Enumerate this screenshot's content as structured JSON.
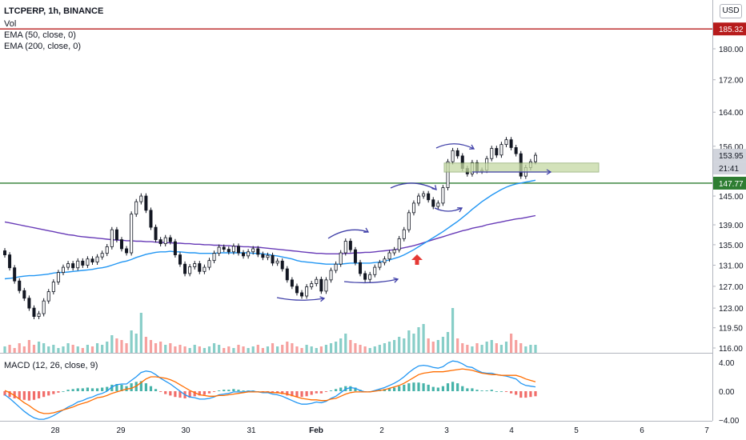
{
  "header": {
    "symbol_line": "LTCPERP, 1h, BINANCE",
    "vol_label": "Vol",
    "ema50_label": "EMA (50, close, 0)",
    "ema200_label": "EMA (200, close, 0)",
    "currency": "USD",
    "macd_label": "MACD (12, 26, close, 9)"
  },
  "colors": {
    "up": "#26a69a",
    "down": "#ef5350",
    "candle": "#131722",
    "ema50": "#2196f3",
    "ema200": "#673ab7",
    "red_line": "#b71c1c",
    "green_line": "#2e7d32",
    "zone_fill": "#c5d9a3",
    "annotation": "#3f3fa8",
    "arrow": "#e53935"
  },
  "chart_data": {
    "type": "candlestick",
    "price_axis": {
      "ticks": [
        "180.00",
        "172.00",
        "164.00",
        "156.00",
        "145.00",
        "139.00",
        "135.00",
        "131.00",
        "127.00",
        "123.00",
        "119.50",
        "116.00"
      ],
      "scale": "log"
    },
    "price_labels": {
      "red_level": "185.32",
      "last_price": "153.95",
      "countdown": "21:41",
      "green_level": "147.77"
    },
    "x_ticks": [
      "28",
      "29",
      "30",
      "31",
      "Feb",
      "2",
      "3",
      "4",
      "5",
      "6",
      "7"
    ],
    "macd_axis": {
      "ticks": [
        "4.00",
        "0.00",
        "−4.00"
      ]
    },
    "close": [
      133.0,
      130.5,
      128.0,
      126.2,
      124.8,
      123.0,
      121.5,
      122.0,
      124.3,
      126.0,
      127.8,
      129.6,
      130.6,
      131.3,
      130.5,
      131.8,
      131.0,
      132.2,
      131.6,
      132.6,
      133.3,
      134.6,
      138.0,
      136.0,
      134.2,
      133.4,
      141.2,
      143.8,
      145.0,
      142.0,
      138.5,
      136.0,
      135.2,
      136.4,
      135.6,
      133.0,
      131.2,
      129.4,
      130.7,
      131.3,
      129.8,
      130.6,
      131.9,
      133.3,
      134.5,
      134.1,
      133.6,
      134.7,
      133.4,
      132.8,
      133.6,
      134.2,
      133.1,
      132.5,
      132.9,
      131.4,
      131.8,
      130.3,
      128.2,
      127.0,
      125.8,
      125.2,
      126.9,
      127.5,
      128.3,
      126.1,
      128.2,
      130.0,
      131.2,
      133.4,
      135.7,
      134.0,
      131.5,
      129.4,
      128.3,
      129.2,
      130.6,
      131.5,
      132.2,
      133.4,
      134.0,
      136.2,
      138.0,
      141.5,
      143.5,
      145.0,
      145.5,
      144.2,
      142.8,
      143.5,
      146.8,
      152.5,
      155.0,
      153.8,
      151.0,
      149.8,
      152.3,
      150.4,
      150.6,
      153.2,
      155.5,
      154.0,
      156.4,
      157.5,
      155.7,
      154.3,
      149.3,
      151.2,
      152.5,
      153.95
    ],
    "volume": [
      4,
      5,
      3,
      6,
      4,
      8,
      5,
      7,
      6,
      4,
      5,
      3,
      4,
      6,
      5,
      4,
      3,
      5,
      4,
      6,
      5,
      7,
      11,
      9,
      8,
      6,
      14,
      12,
      25,
      10,
      8,
      6,
      7,
      5,
      6,
      4,
      5,
      4,
      3,
      5,
      4,
      3,
      4,
      6,
      5,
      3,
      4,
      3,
      5,
      4,
      3,
      4,
      5,
      3,
      4,
      6,
      4,
      5,
      7,
      6,
      4,
      3,
      5,
      4,
      3,
      4,
      5,
      6,
      7,
      9,
      12,
      8,
      6,
      5,
      4,
      3,
      4,
      5,
      6,
      7,
      8,
      10,
      9,
      14,
      12,
      16,
      18,
      9,
      7,
      8,
      10,
      13,
      28,
      9,
      6,
      5,
      4,
      6,
      5,
      7,
      8,
      6,
      5,
      7,
      12,
      8,
      6,
      4,
      5,
      5
    ],
    "ema50": [
      128.4,
      128.5,
      128.6,
      128.8,
      128.9,
      129.0,
      129.0,
      129.1,
      129.2,
      129.3,
      129.5,
      129.6,
      129.6,
      129.7,
      129.8,
      129.9,
      130.0,
      130.1,
      130.2,
      130.4,
      130.5,
      130.7,
      131.0,
      131.3,
      131.6,
      131.8,
      132.1,
      132.5,
      132.8,
      133.1,
      133.3,
      133.5,
      133.6,
      133.6,
      133.7,
      133.6,
      133.6,
      133.5,
      133.4,
      133.4,
      133.3,
      133.3,
      133.3,
      133.3,
      133.4,
      133.4,
      133.4,
      133.4,
      133.4,
      133.4,
      133.4,
      133.3,
      133.3,
      133.2,
      133.1,
      132.9,
      132.8,
      132.6,
      132.4,
      132.2,
      131.9,
      131.7,
      131.6,
      131.5,
      131.4,
      131.3,
      131.2,
      131.2,
      131.2,
      131.2,
      131.3,
      131.4,
      131.4,
      131.4,
      131.4,
      131.4,
      131.5,
      131.6,
      131.8,
      132.0,
      132.3,
      132.6,
      133.0,
      133.5,
      134.0,
      134.6,
      135.2,
      135.8,
      136.4,
      137.0,
      137.6,
      138.3,
      139.0,
      139.7,
      140.5,
      141.3,
      142.2,
      143.0,
      143.8,
      144.5,
      145.2,
      145.8,
      146.4,
      146.9,
      147.3,
      147.6,
      147.8,
      148.0,
      148.2,
      148.4
    ],
    "ema200": [
      139.6,
      139.4,
      139.2,
      139.0,
      138.8,
      138.6,
      138.4,
      138.2,
      138.0,
      137.8,
      137.6,
      137.4,
      137.2,
      137.0,
      136.9,
      136.7,
      136.6,
      136.5,
      136.4,
      136.3,
      136.2,
      136.1,
      136.0,
      135.9,
      135.9,
      135.8,
      135.8,
      135.7,
      135.7,
      135.6,
      135.6,
      135.5,
      135.5,
      135.4,
      135.4,
      135.3,
      135.3,
      135.2,
      135.2,
      135.1,
      135.1,
      135.0,
      135.0,
      134.9,
      134.9,
      134.8,
      134.8,
      134.7,
      134.7,
      134.6,
      134.6,
      134.5,
      134.5,
      134.4,
      134.3,
      134.2,
      134.1,
      134.0,
      133.9,
      133.8,
      133.7,
      133.6,
      133.5,
      133.4,
      133.3,
      133.3,
      133.2,
      133.2,
      133.2,
      133.2,
      133.3,
      133.3,
      133.4,
      133.4,
      133.5,
      133.5,
      133.6,
      133.7,
      133.8,
      133.9,
      134.0,
      134.2,
      134.4,
      134.6,
      134.8,
      135.1,
      135.4,
      135.7,
      136.0,
      136.3,
      136.6,
      136.9,
      137.2,
      137.5,
      137.8,
      138.0,
      138.3,
      138.5,
      138.7,
      139.0,
      139.2,
      139.4,
      139.6,
      139.8,
      140.0,
      140.2,
      140.3,
      140.5,
      140.7,
      140.9
    ],
    "macd_hist": [
      -0.6,
      -0.8,
      -1.0,
      -1.1,
      -1.2,
      -1.3,
      -1.2,
      -1.0,
      -0.8,
      -0.6,
      -0.4,
      -0.2,
      0.0,
      0.2,
      0.3,
      0.4,
      0.4,
      0.5,
      0.4,
      0.4,
      0.5,
      0.6,
      0.9,
      1.0,
      0.9,
      0.7,
      1.1,
      1.3,
      1.4,
      1.1,
      0.7,
      0.3,
      -0.1,
      -0.4,
      -0.6,
      -0.8,
      -0.9,
      -1.0,
      -0.9,
      -0.7,
      -0.6,
      -0.5,
      -0.3,
      -0.1,
      0.1,
      0.2,
      0.2,
      0.3,
      0.2,
      0.1,
      0.1,
      0.1,
      0.0,
      -0.1,
      -0.1,
      -0.2,
      -0.3,
      -0.4,
      -0.6,
      -0.7,
      -0.8,
      -0.8,
      -0.7,
      -0.5,
      -0.3,
      -0.3,
      -0.1,
      0.1,
      0.3,
      0.5,
      0.7,
      0.7,
      0.5,
      0.2,
      0.0,
      0.0,
      0.1,
      0.2,
      0.3,
      0.4,
      0.5,
      0.7,
      0.9,
      1.1,
      1.2,
      1.2,
      1.1,
      0.9,
      0.6,
      0.5,
      0.7,
      1.1,
      1.3,
      1.1,
      0.7,
      0.4,
      0.4,
      0.2,
      0.1,
      0.1,
      0.2,
      0.0,
      0.0,
      -0.1,
      -0.3,
      -0.5,
      -0.9,
      -0.9,
      -0.8,
      -0.7
    ],
    "macd_line": [
      -0.5,
      -1.0,
      -1.6,
      -2.2,
      -2.8,
      -3.3,
      -3.7,
      -3.9,
      -3.9,
      -3.7,
      -3.4,
      -3.0,
      -2.6,
      -2.2,
      -1.9,
      -1.5,
      -1.3,
      -1.0,
      -0.8,
      -0.5,
      -0.3,
      0.0,
      0.6,
      0.9,
      1.0,
      1.0,
      1.5,
      2.0,
      2.6,
      2.8,
      2.7,
      2.3,
      1.8,
      1.4,
      1.0,
      0.5,
      0.0,
      -0.5,
      -0.8,
      -0.9,
      -1.1,
      -1.1,
      -1.0,
      -0.8,
      -0.5,
      -0.4,
      -0.3,
      -0.1,
      -0.1,
      -0.1,
      0.0,
      0.0,
      -0.1,
      -0.2,
      -0.2,
      -0.4,
      -0.5,
      -0.7,
      -1.0,
      -1.3,
      -1.6,
      -1.8,
      -1.8,
      -1.7,
      -1.5,
      -1.6,
      -1.4,
      -1.0,
      -0.7,
      -0.2,
      0.3,
      0.5,
      0.4,
      0.1,
      -0.1,
      -0.1,
      0.1,
      0.3,
      0.5,
      0.8,
      1.1,
      1.5,
      2.0,
      2.6,
      3.1,
      3.5,
      3.6,
      3.5,
      3.3,
      3.2,
      3.4,
      3.9,
      4.2,
      4.1,
      3.8,
      3.4,
      3.3,
      2.9,
      2.6,
      2.5,
      2.5,
      2.3,
      2.2,
      2.1,
      1.9,
      1.7,
      1.1,
      0.8,
      0.7,
      0.6
    ],
    "signal_line": [
      0.1,
      -0.2,
      -0.6,
      -1.1,
      -1.6,
      -2.0,
      -2.5,
      -2.9,
      -3.1,
      -3.1,
      -3.0,
      -2.8,
      -2.6,
      -2.4,
      -2.2,
      -1.9,
      -1.7,
      -1.5,
      -1.2,
      -0.9,
      -0.8,
      -0.6,
      -0.3,
      -0.1,
      0.1,
      0.3,
      0.4,
      0.7,
      1.2,
      1.7,
      2.0,
      2.0,
      1.9,
      1.8,
      1.6,
      1.3,
      0.9,
      0.5,
      0.1,
      -0.2,
      -0.5,
      -0.6,
      -0.7,
      -0.7,
      -0.6,
      -0.6,
      -0.5,
      -0.4,
      -0.3,
      -0.2,
      -0.1,
      -0.1,
      -0.1,
      -0.1,
      -0.1,
      -0.2,
      -0.2,
      -0.3,
      -0.4,
      -0.6,
      -0.8,
      -1.0,
      -1.1,
      -1.2,
      -1.2,
      -1.3,
      -1.3,
      -1.1,
      -1.0,
      -0.7,
      -0.4,
      -0.2,
      -0.1,
      -0.1,
      -0.1,
      -0.1,
      0.0,
      0.1,
      0.2,
      0.4,
      0.6,
      0.8,
      1.1,
      1.5,
      1.9,
      2.3,
      2.5,
      2.6,
      2.7,
      2.7,
      2.7,
      2.8,
      2.9,
      3.0,
      3.1,
      3.0,
      2.9,
      2.7,
      2.5,
      2.4,
      2.3,
      2.3,
      2.2,
      2.2,
      2.2,
      2.2,
      2.0,
      1.7,
      1.5,
      1.3
    ]
  }
}
